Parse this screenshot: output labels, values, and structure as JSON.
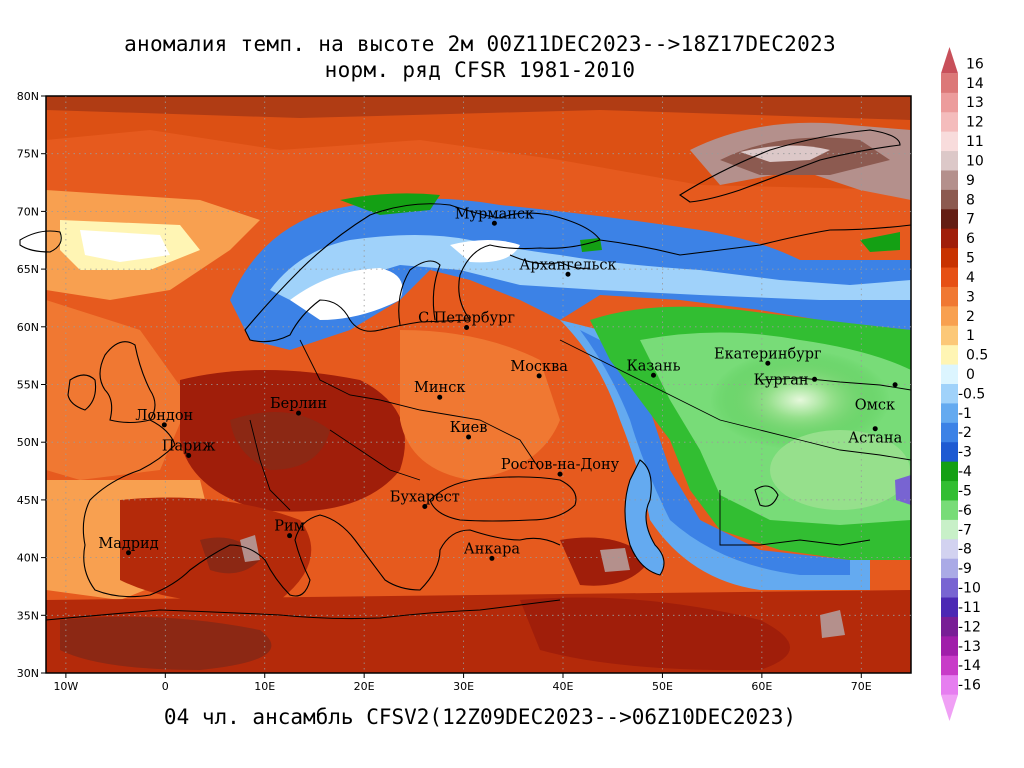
{
  "title_line1": "аномалия темп. на высоте 2м 00Z11DEC2023-->18Z17DEC2023",
  "title_line2": "норм. ряд CFSR 1981-2010",
  "footer": "04 чл. ансамбль CFSV2(12Z09DEC2023-->06Z10DEC2023)",
  "map": {
    "lon_range": [
      -12,
      75
    ],
    "lat_range": [
      30,
      80
    ],
    "lat_ticks": [
      "80N",
      "75N",
      "70N",
      "65N",
      "60N",
      "55N",
      "50N",
      "45N",
      "40N",
      "35N",
      "30N"
    ],
    "lon_ticks": [
      "10W",
      "0",
      "10E",
      "20E",
      "30E",
      "40E",
      "50E",
      "60E",
      "70E"
    ]
  },
  "cities": [
    {
      "name": "Мурманск",
      "lon": 33.1,
      "lat": 68.97
    },
    {
      "name": "Архангельск",
      "lon": 40.5,
      "lat": 64.55
    },
    {
      "name": "С.Петербург",
      "lon": 30.3,
      "lat": 59.94
    },
    {
      "name": "Москва",
      "lon": 37.6,
      "lat": 55.75
    },
    {
      "name": "Казань",
      "lon": 49.1,
      "lat": 55.8
    },
    {
      "name": "Екатеринбург",
      "lon": 60.6,
      "lat": 56.84
    },
    {
      "name": "Курган",
      "lon": 65.3,
      "lat": 55.45
    },
    {
      "name": "Омск",
      "lon": 73.4,
      "lat": 54.98
    },
    {
      "name": "Астана",
      "lon": 71.4,
      "lat": 51.17
    },
    {
      "name": "Минск",
      "lon": 27.6,
      "lat": 53.9
    },
    {
      "name": "Киев",
      "lon": 30.5,
      "lat": 50.45
    },
    {
      "name": "Берлин",
      "lon": 13.4,
      "lat": 52.52
    },
    {
      "name": "Лондон",
      "lon": -0.1,
      "lat": 51.5
    },
    {
      "name": "Париж",
      "lon": 2.35,
      "lat": 48.85
    },
    {
      "name": "Ростов-на-Дону",
      "lon": 39.7,
      "lat": 47.23
    },
    {
      "name": "Бухарест",
      "lon": 26.1,
      "lat": 44.43
    },
    {
      "name": "Рим",
      "lon": 12.5,
      "lat": 41.9
    },
    {
      "name": "Мадрид",
      "lon": -3.7,
      "lat": 40.42
    },
    {
      "name": "Анкара",
      "lon": 32.85,
      "lat": 39.93
    }
  ],
  "colorbar": {
    "labels": [
      "16",
      "14",
      "13",
      "12",
      "11",
      "10",
      "9",
      "8",
      "7",
      "6",
      "5",
      "4",
      "3",
      "2",
      "1",
      "0.5",
      "0",
      "-0.5",
      "-1",
      "-2",
      "-3",
      "-4",
      "-5",
      "-6",
      "-7",
      "-8",
      "-9",
      "-10",
      "-11",
      "-12",
      "-13",
      "-14",
      "-16"
    ],
    "colors": [
      "#c8505a",
      "#dc7878",
      "#ec9c9c",
      "#f4bcbc",
      "#f8dcdc",
      "#dcc8c8",
      "#b4908c",
      "#8c5a50",
      "#641e14",
      "#a01e0a",
      "#c83200",
      "#e65014",
      "#f07832",
      "#f8a050",
      "#fcc878",
      "#fff5b4",
      "#dcf5ff",
      "#a0d2fa",
      "#64aaf0",
      "#3c82e6",
      "#1e5ad2",
      "#14a014",
      "#32be32",
      "#78dc78",
      "#c8f0c8",
      "#d2d2f0",
      "#aaaae6",
      "#7864d2",
      "#4b28b4",
      "#781e96",
      "#a01eaa",
      "#c83cc8",
      "#e67ef0",
      "#f0a0f5"
    ]
  },
  "colors": {
    "background": "#ffffff"
  }
}
